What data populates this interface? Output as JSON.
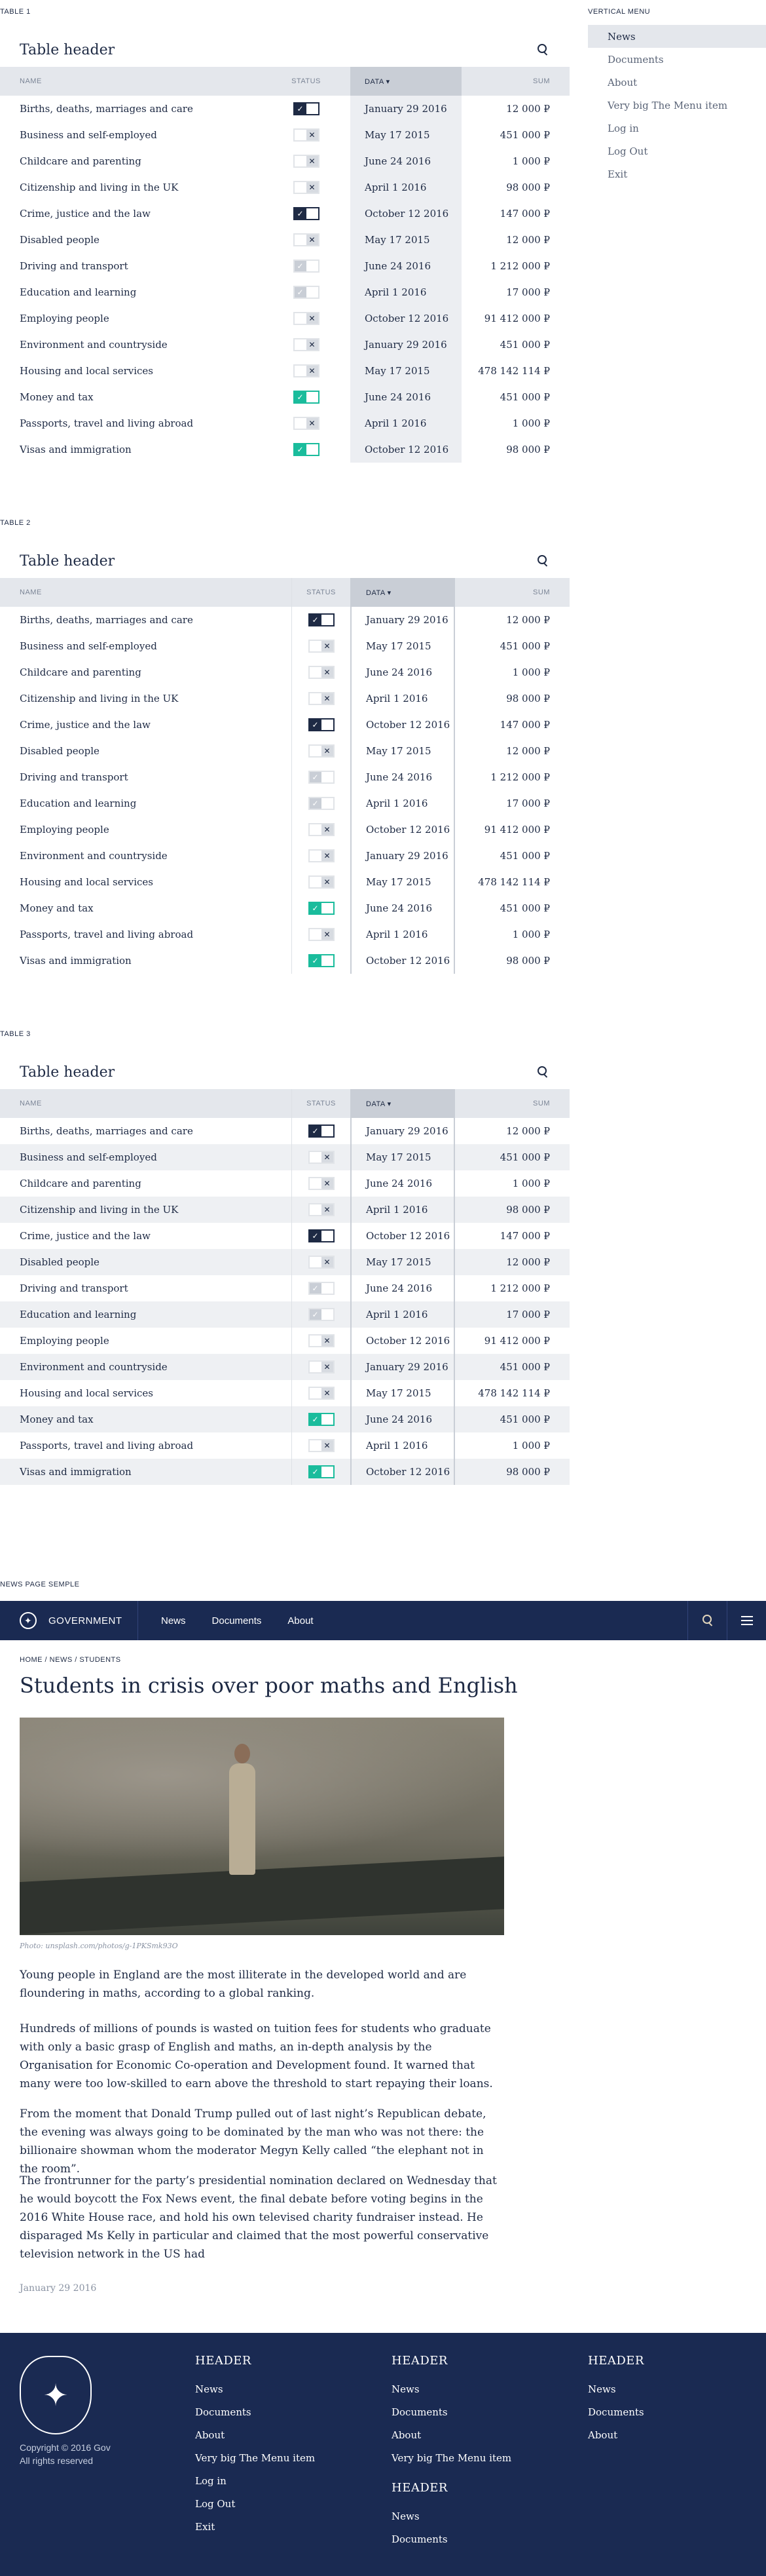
{
  "labels": {
    "table1": "TABLE 1",
    "table2": "TABLE 2",
    "table3": "TABLE 3",
    "vmenu": "VERTICAL MENU",
    "news_sample": "NEWS PAGE SEMPLE"
  },
  "table": {
    "title": "Table header",
    "columns": {
      "name": "NAME",
      "status": "STATUS",
      "data": "DATA ▾",
      "sum": "SUM"
    },
    "rows": [
      {
        "name": "Births, deaths, marriages and care",
        "status": "on",
        "date": "January 29 2016",
        "sum": "12 000 ₽"
      },
      {
        "name": "Business and self-employed",
        "status": "off",
        "date": "May 17 2015",
        "sum": "451 000 ₽"
      },
      {
        "name": "Childcare and parenting",
        "status": "off",
        "date": "June 24 2016",
        "sum": "1 000 ₽"
      },
      {
        "name": "Citizenship and living in the UK",
        "status": "off",
        "date": "April 1 2016",
        "sum": "98 000 ₽"
      },
      {
        "name": "Crime, justice and the law",
        "status": "on",
        "date": "October 12 2016",
        "sum": "147 000 ₽"
      },
      {
        "name": "Disabled people",
        "status": "off",
        "date": "May 17 2015",
        "sum": "12 000 ₽"
      },
      {
        "name": "Driving and transport",
        "status": "half",
        "date": "June 24 2016",
        "sum": "1 212 000 ₽"
      },
      {
        "name": "Education and learning",
        "status": "half",
        "date": "April 1 2016",
        "sum": "17 000 ₽"
      },
      {
        "name": "Employing people",
        "status": "off",
        "date": "October 12 2016",
        "sum": "91 412 000 ₽"
      },
      {
        "name": "Environment and countryside",
        "status": "off",
        "date": "January 29 2016",
        "sum": "451 000 ₽"
      },
      {
        "name": "Housing and local services",
        "status": "off",
        "date": "May 17 2015",
        "sum": "478 142 114 ₽"
      },
      {
        "name": "Money and tax",
        "status": "green",
        "date": "June 24 2016",
        "sum": "451 000 ₽"
      },
      {
        "name": "Passports, travel and living abroad",
        "status": "off",
        "date": "April 1 2016",
        "sum": "1 000 ₽"
      },
      {
        "name": "Visas and immigration",
        "status": "green",
        "date": "October 12 2016",
        "sum": "98 000 ₽"
      }
    ]
  },
  "vmenu": {
    "items": [
      "News",
      "Documents",
      "About",
      "Very big The Menu item",
      "Log in",
      "Log Out",
      "Exit"
    ],
    "active": 0
  },
  "nav": {
    "brand": "GOVERNMENT",
    "items": [
      "News",
      "Documents",
      "About"
    ]
  },
  "news": {
    "breadcrumb": "HOME  /  NEWS  /  STUDENTS",
    "title": "Students in crisis over poor maths and English",
    "photo_caption": "Photo: unsplash.com/photos/g-1PKSmk93O",
    "paragraphs": [
      "Young people in England are the most illiterate in the developed world and are floundering in maths, according to a global ranking.",
      "Hundreds of millions of pounds is wasted on tuition fees for students who graduate with only a basic grasp of English and maths, an in-depth analysis by the Organisation for Economic Co-operation and Development found. It warned that many were too low-skilled to earn above the threshold to start repaying their loans.",
      "From the moment that Donald Trump pulled out of last night’s Republican debate, the evening was always going to be dominated by the man who was not there: the billionaire showman whom the moderator Megyn Kelly called “the elephant not in the room”.",
      "The frontrunner for the party’s presidential nomination declared on Wednesday that he would boycott the Fox News event, the final debate before voting begins in the 2016 White House race, and hold his own televised charity fundraiser instead. He disparaged Ms Kelly in particular and claimed that the most powerful conservative television network in the US had"
    ],
    "date": "January 29 2016"
  },
  "footer": {
    "copyright": [
      "Copyright © 2016 Gov",
      "All rights reserved"
    ],
    "col1": {
      "header": "HEADER",
      "items": [
        "News",
        "Documents",
        "About",
        "Very big The Menu item",
        "Log in",
        "Log Out",
        "Exit"
      ]
    },
    "col2": {
      "header": "HEADER",
      "items": [
        "News",
        "Documents",
        "About",
        "Very big The Menu item"
      ]
    },
    "col3": {
      "header": "HEADER",
      "items": [
        "News",
        "Documents"
      ]
    },
    "col4": {
      "header": "HEADER",
      "items": [
        "News",
        "Documents",
        "About"
      ]
    }
  }
}
